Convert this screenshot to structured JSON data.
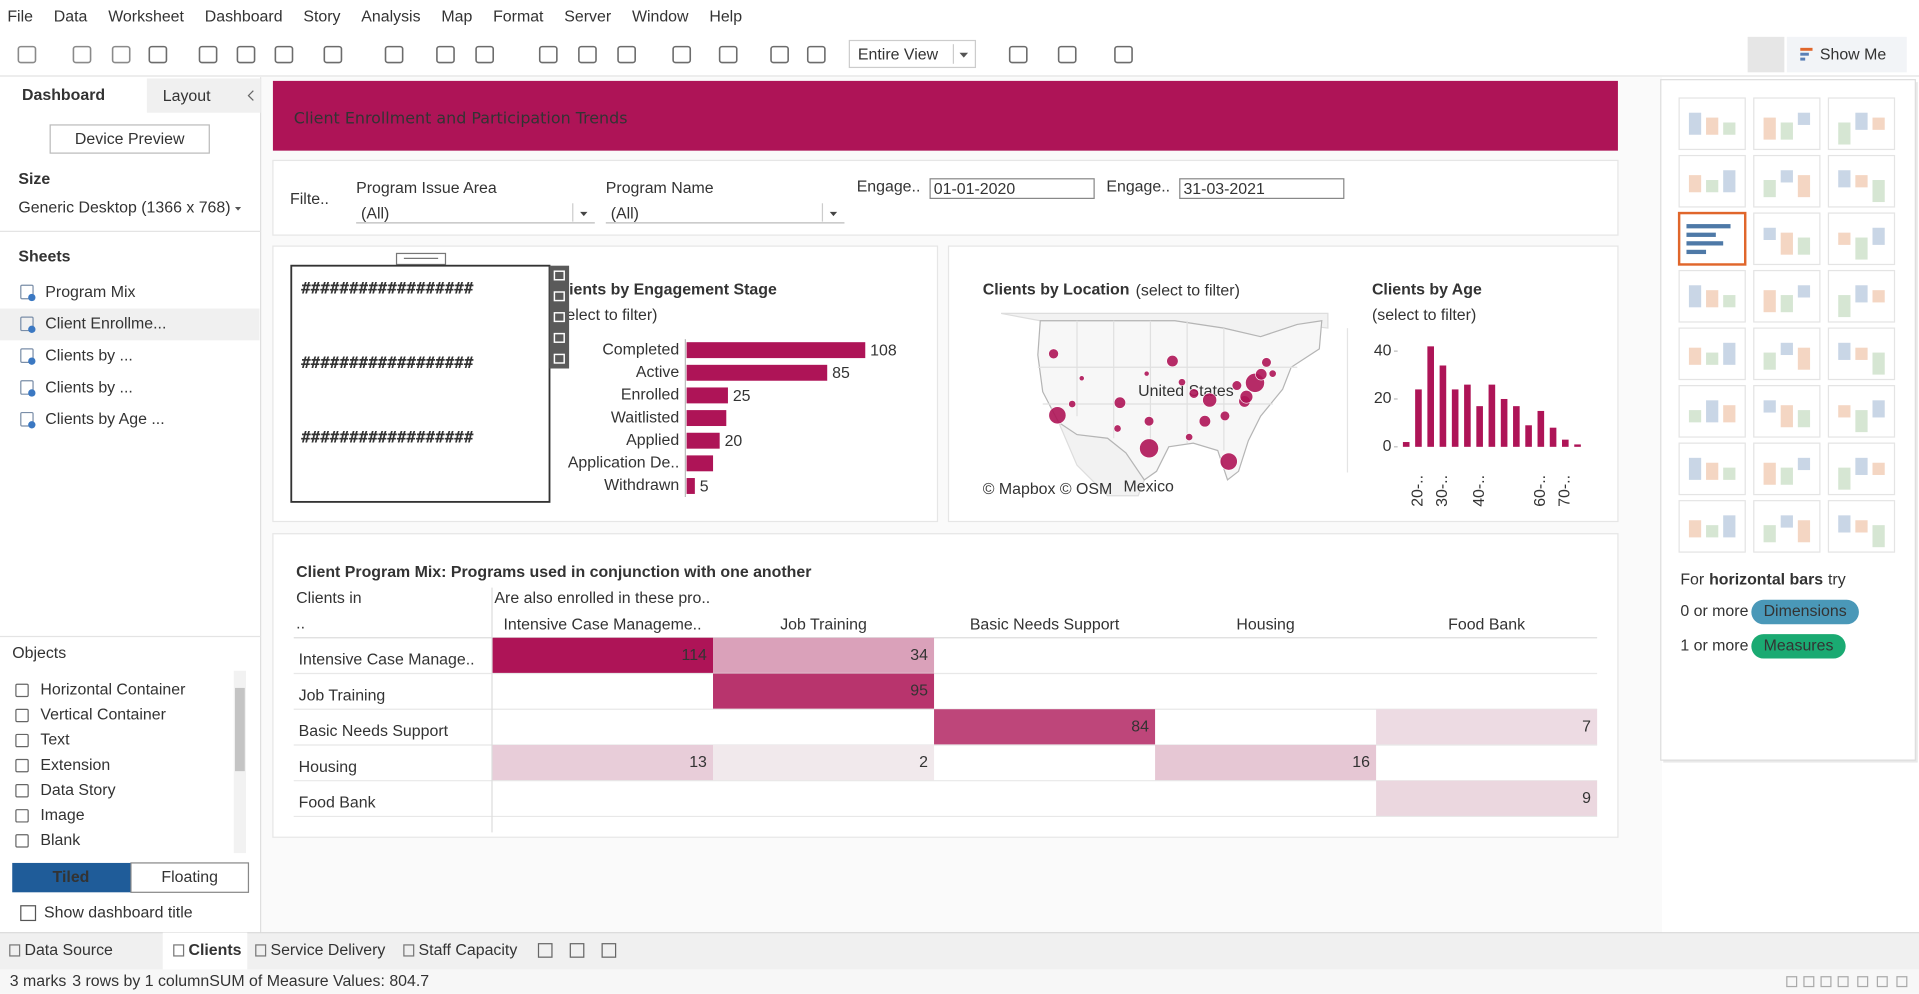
{
  "menu": [
    "File",
    "Data",
    "Worksheet",
    "Dashboard",
    "Story",
    "Analysis",
    "Map",
    "Format",
    "Server",
    "Window",
    "Help"
  ],
  "toolbar": {
    "fit": "Entire View",
    "show_me": "Show Me"
  },
  "side_panel": {
    "tabs": [
      "Dashboard",
      "Layout"
    ],
    "device_preview": "Device Preview",
    "size": {
      "label": "Size",
      "value": "Generic Desktop (1366 x 768)"
    },
    "sheets": {
      "label": "Sheets",
      "items": [
        "Program Mix",
        "Client Enrollme...",
        "Clients by ...",
        "Clients by ...",
        "Clients by Age ..."
      ]
    },
    "objects": {
      "label": "Objects",
      "items": [
        "Horizontal Container",
        "Vertical Container",
        "Text",
        "Extension",
        "Data Story",
        "Image",
        "Blank"
      ]
    },
    "layout_modes": [
      "Tiled",
      "Floating"
    ],
    "show_title": "Show dashboard title"
  },
  "dashboard": {
    "title": "Client Enrollment and Participation Trends",
    "filters": {
      "label": "Filte..",
      "controls": [
        {
          "label": "Program Issue Area",
          "value": "(All)"
        },
        {
          "label": "Program Name",
          "value": "(All)"
        },
        {
          "label": "Engage..",
          "value": "01-01-2020"
        },
        {
          "label": "Engage..",
          "value": "31-03-2021"
        }
      ]
    },
    "placeholder": [
      "##################",
      "##################",
      "##################"
    ]
  },
  "chart_data": [
    {
      "type": "bar",
      "orientation": "horizontal",
      "title": "Clients by Engagement Stage",
      "subtitle": "(select to filter)",
      "categories": [
        "Completed",
        "Active",
        "Enrolled",
        "Waitlisted",
        "Applied",
        "Application De..",
        "Withdrawn"
      ],
      "values": [
        108,
        85,
        25,
        24,
        20,
        16,
        5
      ],
      "value_labels": [
        "108",
        "85",
        "25",
        null,
        "20",
        null,
        "5"
      ],
      "color": "#ae1457"
    },
    {
      "type": "map",
      "title": "Clients by Location",
      "subtitle": "(select to filter)",
      "attribution": "© Mapbox © OSM",
      "place_labels": [
        "United States",
        "Mexico"
      ],
      "lon": [
        -120.9,
        -121.7,
        -117.8,
        -115.8,
        -107.8,
        -108.3,
        -101.7,
        -101.7,
        -96.8,
        -102.2,
        -94.8,
        -92.3,
        -89.0,
        -90.0,
        -93.3,
        -85.0,
        -85.8,
        -81.7,
        -83.3,
        -79.5,
        -81.3,
        -78.2,
        -75.8,
        -77.1
      ],
      "lat": [
        34.7,
        44.0,
        36.4,
        40.3,
        36.6,
        32.7,
        29.7,
        33.8,
        42.9,
        41.0,
        39.7,
        38.0,
        37.0,
        33.8,
        31.4,
        27.7,
        34.6,
        36.8,
        39.2,
        39.6,
        37.5,
        40.9,
        41.0,
        42.7
      ],
      "values": [
        45,
        15,
        8,
        4,
        20,
        8,
        55,
        14,
        20,
        4,
        8,
        14,
        30,
        20,
        8,
        45,
        14,
        20,
        14,
        55,
        25,
        20,
        8,
        14
      ],
      "color": "#ae1457"
    },
    {
      "type": "bar",
      "orientation": "vertical",
      "title": "Clients by Age",
      "subtitle": "(select to filter)",
      "categories": [
        null,
        "20-..",
        null,
        "30-..",
        null,
        null,
        "40-..",
        null,
        null,
        null,
        null,
        "60-..",
        null,
        "70-..",
        null
      ],
      "values": [
        2,
        24,
        42,
        34,
        24,
        26,
        17,
        26,
        20,
        17,
        9,
        15,
        8,
        3,
        1
      ],
      "ylim": [
        0,
        44
      ],
      "yticks": [
        0,
        20,
        40
      ],
      "color": "#ae1457"
    }
  ],
  "program_mix": {
    "title": "Client Program Mix: Programs used in conjunction with one another",
    "row_header": "Clients in",
    "row_subheader": "..",
    "column_header": "Are also enrolled in these pro..",
    "columns": [
      "Intensive Case Manageme..",
      "Job Training",
      "Basic Needs Support",
      "Housing",
      "Food Bank"
    ],
    "rows": [
      "Intensive Case Manage..",
      "Job Training",
      "Basic Needs Support",
      "Housing",
      "Food Bank"
    ],
    "values": [
      [
        114,
        34,
        null,
        null,
        null
      ],
      [
        null,
        95,
        null,
        null,
        null
      ],
      [
        null,
        null,
        84,
        null,
        7
      ],
      [
        13,
        2,
        null,
        16,
        null
      ],
      [
        null,
        null,
        null,
        null,
        9
      ]
    ],
    "color": "#ae1457"
  },
  "show_me": {
    "hint": {
      "prefix": "For",
      "emphasis": "horizontal bars",
      "suffix": "try"
    },
    "requirements": [
      {
        "count": "0 or more",
        "kind": "Dimensions",
        "color": "#4a98b8"
      },
      {
        "count": "1 or more",
        "kind": "Measures",
        "color": "#1aaa72"
      }
    ]
  },
  "sheet_tabs": [
    "Data Source",
    "Clients",
    "Service Delivery",
    "Staff Capacity"
  ],
  "status_bar": [
    "3 marks",
    "3 rows by 1 column",
    "SUM of Measure Values: 804.7"
  ]
}
